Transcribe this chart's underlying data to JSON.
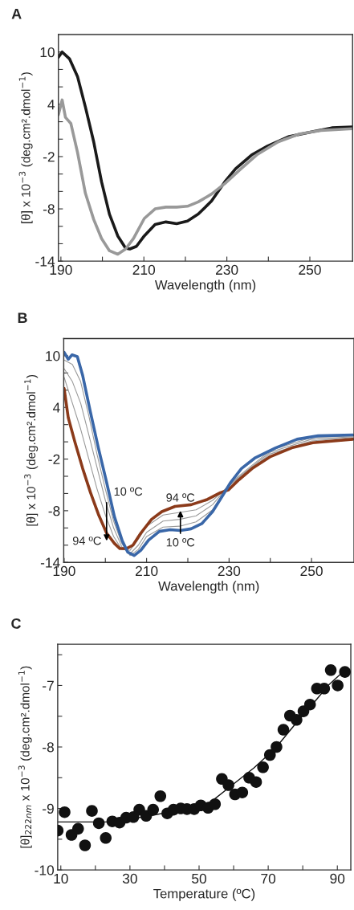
{
  "chart_data": [
    {
      "type": "line",
      "title": "A",
      "xlabel": "Wavelength (nm)",
      "ylabel": "[θ] x 10$^{−3}$ (deg.cm².dmol$^{−1}$)",
      "xlim": [
        189.4,
        260.3
      ],
      "xticks": [
        190,
        {
          "value": 200,
          "label": null
        },
        210,
        {
          "value": 220,
          "label": null
        },
        230,
        {
          "value": 240,
          "label": null
        },
        250
      ],
      "ylim": [
        -14,
        12
      ],
      "yticks": [
        -14,
        {
          "value": -12,
          "label": null
        },
        {
          "value": -10,
          "label": null
        },
        -8,
        {
          "value": -6,
          "label": null
        },
        {
          "value": -4,
          "label": null
        },
        -2,
        {
          "value": 0,
          "label": null
        },
        {
          "value": 2,
          "label": null
        },
        4,
        {
          "value": 6,
          "label": null
        },
        {
          "value": 8,
          "label": null
        },
        10
      ],
      "grid": false,
      "legend": false,
      "series": [
        {
          "color": "#1a1a1a",
          "x": [
            189.4,
            190.3,
            192.1,
            194,
            195.9,
            197.9,
            199.8,
            201.7,
            203.7,
            205.6,
            206.6,
            208.2,
            210.1,
            212.7,
            215.3,
            217.9,
            220.5,
            223.1,
            226.3,
            229.5,
            232.1,
            236,
            239.8,
            245,
            251.1,
            255.3,
            260.3
          ],
          "values": [
            9.4,
            10,
            9.2,
            7.2,
            3.7,
            -0.3,
            -4.9,
            -8.6,
            -11.1,
            -12.5,
            -12.6,
            -12.3,
            -11.1,
            -9.8,
            -9.5,
            -9.7,
            -9.4,
            -8.6,
            -7.1,
            -4.9,
            -3.4,
            -1.8,
            -0.8,
            0.3,
            0.9,
            1.3,
            1.4
          ]
        },
        {
          "color": "#999999",
          "x": [
            189.4,
            190.3,
            191.1,
            192.4,
            194,
            195.9,
            197.9,
            199.8,
            201.7,
            203.7,
            205.6,
            207.5,
            210.1,
            212.7,
            215.3,
            217.9,
            220.5,
            223.1,
            226.3,
            229.5,
            233.4,
            237.2,
            242.4,
            247.5,
            252.7,
            260.3
          ],
          "values": [
            2.8,
            4.5,
            2.5,
            1.8,
            -1.5,
            -6.2,
            -9.2,
            -11.4,
            -12.8,
            -13.2,
            -12.6,
            -11.4,
            -9.1,
            -8.0,
            -7.8,
            -7.8,
            -7.7,
            -7.2,
            -6.3,
            -5.1,
            -3.4,
            -1.8,
            -0.3,
            0.6,
            1.0,
            1.2
          ]
        }
      ]
    },
    {
      "type": "line",
      "title": "B",
      "xlabel": "Wavelength (nm)",
      "ylabel": "[θ] x 10$^{−3}$ (deg.cm².dmol$^{−1}$)",
      "xlim": [
        189.9,
        260.3
      ],
      "xticks": [
        190,
        {
          "value": 200,
          "label": null
        },
        210,
        {
          "value": 220,
          "label": null
        },
        230,
        {
          "value": 240,
          "label": null
        },
        250
      ],
      "ylim": [
        -14,
        12
      ],
      "yticks": [
        -14,
        {
          "value": -12,
          "label": null
        },
        {
          "value": -10,
          "label": null
        },
        -8,
        {
          "value": -6,
          "label": null
        },
        {
          "value": -4,
          "label": null
        },
        -2,
        {
          "value": 0,
          "label": null
        },
        {
          "value": 2,
          "label": null
        },
        4,
        {
          "value": 6,
          "label": null
        },
        {
          "value": 8,
          "label": null
        },
        10
      ],
      "grid": false,
      "legend": false,
      "annotations": [
        {
          "text": "10 ºC",
          "x": 200.3,
          "y": -11.5
        },
        "94 ºC",
        {
          "text": "10 ºC",
          "x": 218.2,
          "y": -8.0
        },
        "94 ºC"
      ],
      "series": [
        {
          "color": "#9a9a9a",
          "x": [
            190,
            192,
            194,
            196,
            198,
            200,
            202,
            204,
            206,
            208,
            210,
            214,
            218,
            222,
            226,
            230,
            240,
            250,
            260
          ],
          "values": [
            9.5,
            9.0,
            7.0,
            3.0,
            -1.5,
            -5.5,
            -9.2,
            -11.8,
            -13.2,
            -12.5,
            -11.0,
            -9.9,
            -9.8,
            -9.3,
            -7.9,
            -4.9,
            -1.0,
            0.5,
            0.7
          ]
        },
        {
          "color": "#9a9a9a",
          "x": [
            190,
            192,
            194,
            196,
            198,
            200,
            202,
            204,
            206,
            208,
            210,
            214,
            218,
            222,
            226,
            230,
            240,
            250,
            260
          ],
          "values": [
            8.5,
            7.0,
            4.5,
            0.8,
            -3.0,
            -6.8,
            -10.0,
            -12.2,
            -13.0,
            -12.0,
            -10.5,
            -9.2,
            -9.0,
            -8.6,
            -7.3,
            -5.0,
            -1.2,
            0.3,
            0.6
          ]
        },
        {
          "color": "#9a9a9a",
          "x": [
            190,
            192,
            194,
            196,
            198,
            200,
            202,
            204,
            206,
            208,
            210,
            214,
            218,
            222,
            226,
            230,
            240,
            250,
            260
          ],
          "values": [
            7.5,
            4.5,
            1.5,
            -2.0,
            -5.5,
            -8.5,
            -11.0,
            -12.5,
            -12.6,
            -11.3,
            -9.8,
            -8.5,
            -8.2,
            -7.9,
            -6.8,
            -5.1,
            -1.4,
            0.1,
            0.5
          ]
        },
        {
          "color": "#8b3a1a",
          "x": [
            190,
            191,
            192.6,
            194.5,
            196.4,
            198.3,
            200.3,
            202.2,
            203.5,
            205.1,
            206.7,
            208.6,
            211.2,
            213.7,
            216.9,
            220.8,
            224.7,
            227.9,
            229.8,
            232.4,
            235.6,
            240.1,
            245.2,
            250.3,
            260
          ],
          "values": [
            6.2,
            2.8,
            0,
            -3.1,
            -5.9,
            -8.4,
            -10.6,
            -11.8,
            -12.4,
            -12.4,
            -12,
            -10.6,
            -9,
            -8.1,
            -7.5,
            -7.3,
            -6.7,
            -5.9,
            -5.6,
            -4.4,
            -3.1,
            -1.7,
            -0.7,
            -0.1,
            0.3
          ]
        },
        {
          "color": "#3a67a8",
          "x": [
            190,
            191,
            191.9,
            193.2,
            194.5,
            196.4,
            198.3,
            200.3,
            202.2,
            204.1,
            205.4,
            207,
            208.6,
            210.5,
            213.1,
            215.7,
            218.2,
            220.8,
            223.4,
            226,
            228.5,
            230.4,
            233,
            236.2,
            241.3,
            246.5,
            251.6,
            260
          ],
          "values": [
            10.4,
            9.6,
            10.1,
            9.9,
            7.7,
            3.4,
            -0.7,
            -4.7,
            -8.7,
            -11.5,
            -12.8,
            -13.2,
            -12.6,
            -11.4,
            -10.4,
            -10.2,
            -10.3,
            -10.1,
            -9.5,
            -8.1,
            -6.2,
            -4.7,
            -3.1,
            -1.9,
            -0.7,
            0.3,
            0.7,
            0.8
          ]
        }
      ]
    },
    {
      "type": "scatter",
      "title": "C",
      "xlabel": "Temperature (ºC)",
      "ylabel": "[θ]$_{222nm}$ x 10$^{−3}$ (deg.cm².dmol$^{−1}$)",
      "xlim": [
        9.1,
        93.9
      ],
      "xticks": [
        10,
        {
          "value": 20,
          "label": null
        },
        30,
        {
          "value": 40,
          "label": null
        },
        50,
        {
          "value": 60,
          "label": null
        },
        70,
        {
          "value": 80,
          "label": null
        },
        90
      ],
      "ylim": [
        -10,
        -6.33
      ],
      "yticks": [
        -10,
        {
          "value": -9.5,
          "label": null
        },
        -9,
        {
          "value": -8.5,
          "label": null
        },
        -8,
        {
          "value": -7.5,
          "label": null
        },
        -7,
        {
          "value": -6.5,
          "label": null
        }
      ],
      "grid": false,
      "legend": false,
      "marker": "circle",
      "series": [
        {
          "color": "#111111",
          "x": [
            9.1,
            11.1,
            13.1,
            15.0,
            17.0,
            19.0,
            21.0,
            23.0,
            24.9,
            27.0,
            28.9,
            31.0,
            32.7,
            34.7,
            36.7,
            38.8,
            40.8,
            42.6,
            44.7,
            46.5,
            48.6,
            50.5,
            52.6,
            54.6,
            56.6,
            58.5,
            60.4,
            62.5,
            64.5,
            66.5,
            68.5,
            70.5,
            72.4,
            74.4,
            76.3,
            78.2,
            80.2,
            82.1,
            84.1,
            86.2,
            88.1,
            90.1,
            92.2
          ],
          "values": [
            -9.36,
            -9.06,
            -9.43,
            -9.33,
            -9.6,
            -9.04,
            -9.24,
            -9.48,
            -9.21,
            -9.23,
            -9.15,
            -9.14,
            -9.02,
            -9.12,
            -9.02,
            -8.8,
            -9.08,
            -9.02,
            -9.0,
            -9.01,
            -9.01,
            -8.95,
            -8.99,
            -8.93,
            -8.52,
            -8.62,
            -8.77,
            -8.74,
            -8.5,
            -8.57,
            -8.33,
            -8.13,
            -8.0,
            -7.72,
            -7.49,
            -7.56,
            -7.42,
            -7.31,
            -7.05,
            -7.05,
            -6.75,
            -7.0,
            -6.78
          ]
        },
        {
          "type": "line",
          "marker": "none",
          "color": "#111111",
          "x": [
            9.1,
            23.3,
            34.9,
            46.5,
            53.5,
            58.9,
            65.9,
            72.1,
            77.5,
            82.9,
            87.5,
            92.2
          ],
          "values": [
            -9.22,
            -9.22,
            -9.13,
            -9.0,
            -8.89,
            -8.65,
            -8.34,
            -8.02,
            -7.65,
            -7.3,
            -6.99,
            -6.75
          ]
        }
      ]
    }
  ]
}
